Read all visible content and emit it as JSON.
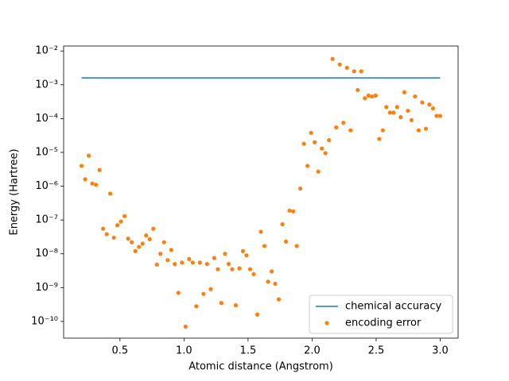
{
  "chart_data": {
    "type": "line",
    "xlabel": "Atomic distance (Angstrom)",
    "ylabel": "Energy (Hartree)",
    "xlim": [
      0.06,
      3.14
    ],
    "ylim": [
      3.2e-11,
      0.014
    ],
    "log_y": true,
    "legend": "lower right",
    "xticks": [
      0.5,
      {
        "value": 1,
        "label": "1.0"
      },
      1.5,
      {
        "value": 2,
        "label": "2.0"
      },
      2.5,
      {
        "value": 3,
        "label": "3.0"
      }
    ],
    "yticks": [
      {
        "value": 1e-10,
        "label": "10⁻¹⁰"
      },
      {
        "value": 1e-09,
        "label": "10⁻⁹"
      },
      {
        "value": 1e-08,
        "label": "10⁻⁸"
      },
      {
        "value": 1e-07,
        "label": "10⁻⁷"
      },
      {
        "value": 1e-06,
        "label": "10⁻⁶"
      },
      {
        "value": 1e-05,
        "label": "10⁻⁵"
      },
      {
        "value": 0.0001,
        "label": "10⁻⁴"
      },
      {
        "value": 0.001,
        "label": "10⁻³"
      },
      {
        "value": 0.01,
        "label": "10⁻²"
      }
    ],
    "series": [
      {
        "name": "chemical accuracy",
        "type": "line",
        "color": "#1f77b4",
        "x": [
          0.2,
          3.0
        ],
        "values": [
          0.0016,
          0.0016
        ]
      },
      {
        "name": "encoding error",
        "type": "scatter",
        "color": "#ff7f0e",
        "x": [
          0.2,
          0.228,
          0.256,
          0.284,
          0.312,
          0.34,
          0.368,
          0.396,
          0.424,
          0.452,
          0.48,
          0.508,
          0.536,
          0.564,
          0.592,
          0.62,
          0.648,
          0.676,
          0.704,
          0.732,
          0.76,
          0.788,
          0.816,
          0.844,
          0.872,
          0.9,
          0.928,
          0.956,
          0.984,
          1.012,
          1.04,
          1.068,
          1.096,
          1.124,
          1.152,
          1.18,
          1.208,
          1.236,
          1.264,
          1.292,
          1.32,
          1.348,
          1.376,
          1.404,
          1.432,
          1.46,
          1.488,
          1.516,
          1.544,
          1.572,
          1.6,
          1.628,
          1.656,
          1.684,
          1.712,
          1.74,
          1.768,
          1.796,
          1.824,
          1.852,
          1.88,
          1.908,
          1.936,
          1.964,
          1.992,
          2.02,
          2.048,
          2.076,
          2.104,
          2.132,
          2.16,
          2.188,
          2.216,
          2.244,
          2.272,
          2.3,
          2.328,
          2.356,
          2.384,
          2.412,
          2.44,
          2.468,
          2.496,
          2.524,
          2.552,
          2.58,
          2.608,
          2.636,
          2.664,
          2.692,
          2.72,
          2.748,
          2.776,
          2.804,
          2.832,
          2.86,
          2.888,
          2.916,
          2.944,
          2.972,
          3.0
        ],
        "values": [
          4e-06,
          1.6e-06,
          8e-06,
          1.2e-06,
          1.1e-06,
          3e-06,
          5.5e-08,
          3.8e-08,
          6e-07,
          3e-08,
          7e-08,
          9e-08,
          1.3e-07,
          2.8e-08,
          2.2e-08,
          1.2e-08,
          1.6e-08,
          2e-08,
          3.5e-08,
          2.7e-08,
          5.5e-08,
          4.8e-09,
          1e-08,
          2.2e-08,
          6.5e-09,
          1.3e-08,
          5e-09,
          7e-10,
          5.5e-09,
          7e-11,
          7e-09,
          5.5e-09,
          2.8e-10,
          5.5e-09,
          6.5e-10,
          5e-09,
          9e-10,
          7.5e-09,
          3.5e-09,
          3.5e-10,
          1e-08,
          5e-09,
          3.5e-09,
          3e-10,
          3.7e-09,
          1.2e-08,
          9e-09,
          3.5e-09,
          2.5e-09,
          1.6e-10,
          4.5e-08,
          1.7e-08,
          1.5e-09,
          3e-09,
          1.3e-09,
          4.5e-10,
          7.5e-08,
          2.3e-08,
          1.9e-07,
          1.8e-07,
          1.7e-08,
          8.5e-07,
          1.8e-05,
          4e-06,
          3.8e-05,
          2e-05,
          2.7e-06,
          1.3e-05,
          9.5e-06,
          2.3e-05,
          0.0058,
          5.5e-05,
          0.004,
          7.5e-05,
          0.0032,
          4.5e-05,
          0.0025,
          0.0007,
          0.0025,
          0.0004,
          0.00048,
          0.00045,
          0.00048,
          2.5e-05,
          4.5e-05,
          0.00022,
          0.00015,
          0.00015,
          0.00022,
          0.00011,
          0.0006,
          0.00017,
          9e-05,
          0.00045,
          4.5e-05,
          0.0003,
          5e-05,
          0.00026,
          0.0002,
          0.00012,
          0.00012
        ]
      }
    ]
  }
}
